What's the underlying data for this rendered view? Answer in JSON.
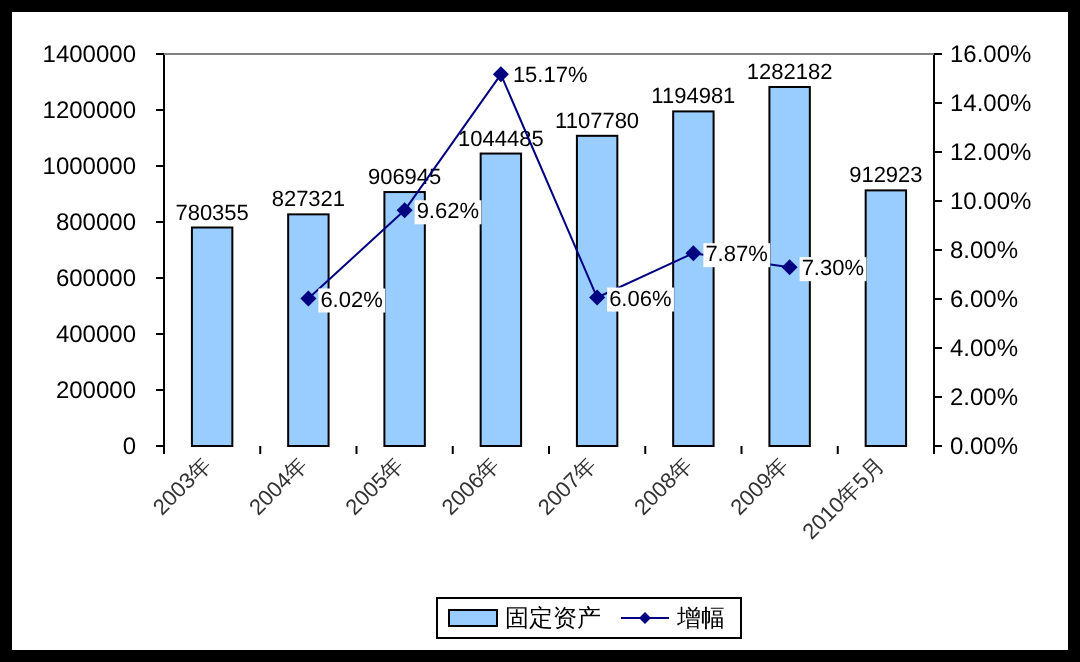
{
  "chart_data": {
    "type": "bar",
    "categories": [
      "2003年",
      "2004年",
      "2005年",
      "2006年",
      "2007年",
      "2008年",
      "2009年",
      "2010年5月"
    ],
    "series": [
      {
        "name": "固定资产",
        "color": "#99ccff",
        "values": [
          780355,
          827321,
          906945,
          1044485,
          1107780,
          1194981,
          1282182,
          912923
        ],
        "value_labels": [
          "780355",
          "827321",
          "906945",
          "1044485",
          "1107780",
          "1194981",
          "1282182",
          "912923"
        ]
      },
      {
        "name": "增幅",
        "type": "line",
        "axis": "y2",
        "color": "#000080",
        "marker": "diamond",
        "values": [
          null,
          6.02,
          9.62,
          15.17,
          6.06,
          7.87,
          7.3,
          null
        ],
        "value_labels": [
          null,
          "6.02%",
          "9.62%",
          "15.17%",
          "6.06%",
          "7.87%",
          "7.30%",
          null
        ]
      }
    ],
    "ylim": [
      0,
      1400000
    ],
    "yticks": [
      0,
      200000,
      400000,
      600000,
      800000,
      1000000,
      1200000,
      1400000
    ],
    "y2lim": [
      0,
      16
    ],
    "y2ticks": [
      {
        "value": 0,
        "label": "0.00%"
      },
      {
        "value": 2,
        "label": "2.00%"
      },
      {
        "value": 4,
        "label": "4.00%"
      },
      {
        "value": 6,
        "label": "6.00%"
      },
      {
        "value": 8,
        "label": "8.00%"
      },
      {
        "value": 10,
        "label": "10.00%"
      },
      {
        "value": 12,
        "label": "12.00%"
      },
      {
        "value": 14,
        "label": "14.00%"
      },
      {
        "value": 16,
        "label": "16.00%"
      }
    ],
    "grid": false,
    "legend": "bottom"
  }
}
